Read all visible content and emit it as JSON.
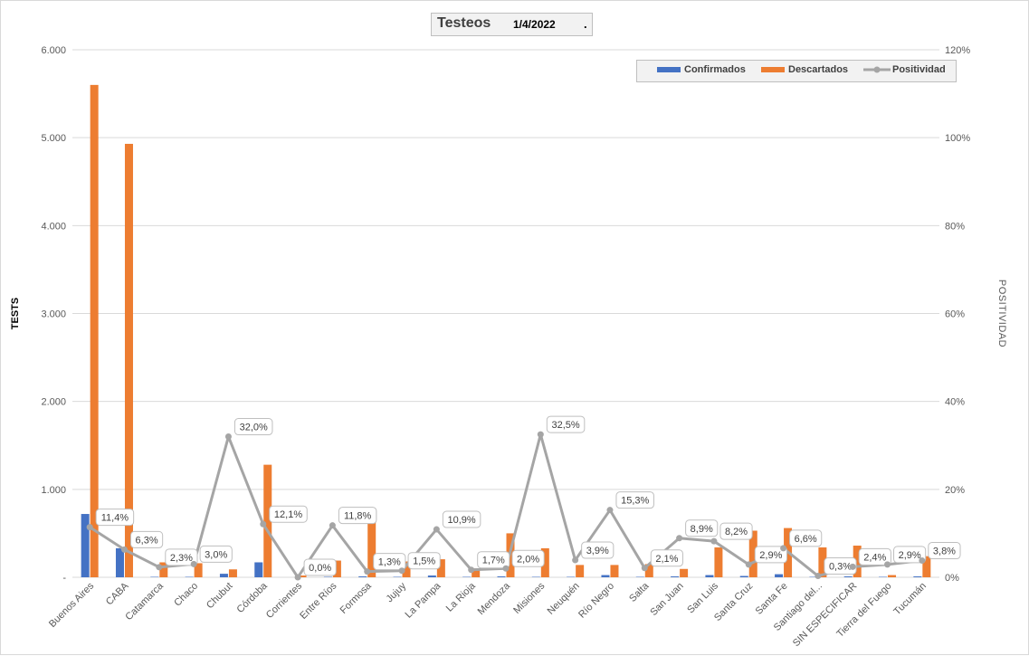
{
  "chart_data": {
    "type": "bar",
    "title": "Testeos",
    "subtitle": "1/4/2022",
    "title_suffix": ".",
    "ylabel": "TESTS",
    "y2label": "POSITIVIDAD",
    "ylim": [
      0,
      6000
    ],
    "y2lim": [
      0,
      120
    ],
    "yticks": [
      "-",
      "1.000",
      "2.000",
      "3.000",
      "4.000",
      "5.000",
      "6.000"
    ],
    "y2ticks": [
      "0%",
      "20%",
      "40%",
      "60%",
      "80%",
      "100%",
      "120%"
    ],
    "legend_position": "top-right",
    "grid": true,
    "categories": [
      "Buenos Aires",
      "CABA",
      "Catamarca",
      "Chaco",
      "Chubut",
      "Córdoba",
      "Corrientes",
      "Entre Ríos",
      "Formosa",
      "Jujuy",
      "La Pampa",
      "La Rioja",
      "Mendoza",
      "Misiones",
      "Neuquén",
      "Río Negro",
      "Salta",
      "San Juan",
      "San Luis",
      "Santa Cruz",
      "Santa Fe",
      "Santiago del...",
      "SIN ESPECIFICAR",
      "Tierra del Fuego",
      "Tucumán"
    ],
    "series": [
      {
        "name": "Confirmados",
        "type": "bar",
        "axis": "left",
        "color": "#4472c4",
        "values": [
          720,
          330,
          5,
          5,
          40,
          170,
          0,
          5,
          10,
          5,
          20,
          5,
          10,
          5,
          5,
          25,
          5,
          10,
          25,
          15,
          35,
          5,
          10,
          5,
          10
        ]
      },
      {
        "name": "Descartados",
        "type": "bar",
        "axis": "left",
        "color": "#ed7d31",
        "values": [
          5600,
          4930,
          170,
          160,
          90,
          1280,
          20,
          190,
          720,
          180,
          205,
          100,
          500,
          330,
          140,
          140,
          150,
          95,
          340,
          530,
          560,
          340,
          360,
          25,
          240
        ]
      },
      {
        "name": "Positividad",
        "type": "line",
        "axis": "right",
        "color": "#a5a5a5",
        "values": [
          11.4,
          6.3,
          2.3,
          3.0,
          32.0,
          12.1,
          0.0,
          11.8,
          1.3,
          1.5,
          10.9,
          1.7,
          2.0,
          32.5,
          3.9,
          15.3,
          2.1,
          8.9,
          8.2,
          2.9,
          6.6,
          0.3,
          2.4,
          2.9,
          3.8
        ],
        "labels": [
          "11,4%",
          "6,3%",
          "2,3%",
          "3,0%",
          "32,0%",
          "12,1%",
          "0,0%",
          "11,8%",
          "1,3%",
          "1,5%",
          "10,9%",
          "1,7%",
          "2,0%",
          "32,5%",
          "3,9%",
          "15,3%",
          "2,1%",
          "8,9%",
          "8,2%",
          "2,9%",
          "6,6%",
          "0,3%",
          "2,4%",
          "2,9%",
          "3,8%"
        ]
      }
    ]
  }
}
